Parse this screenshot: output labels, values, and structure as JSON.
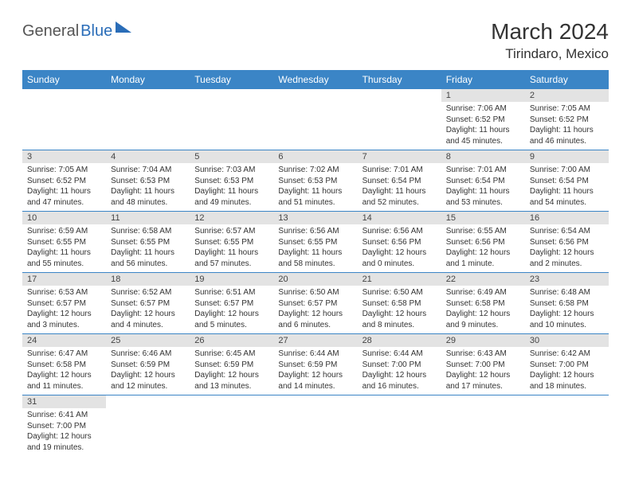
{
  "logo": {
    "part1": "General",
    "part2": "Blue"
  },
  "title": "March 2024",
  "location": "Tirindaro, Mexico",
  "colors": {
    "header_bg": "#3b85c6",
    "header_fg": "#ffffff",
    "daynum_bg": "#e3e3e3",
    "rule": "#3b85c6",
    "logo_gray": "#555555",
    "logo_blue": "#2a6db8"
  },
  "weekdays": [
    "Sunday",
    "Monday",
    "Tuesday",
    "Wednesday",
    "Thursday",
    "Friday",
    "Saturday"
  ],
  "grid": [
    [
      null,
      null,
      null,
      null,
      null,
      {
        "n": "1",
        "sunrise": "Sunrise: 7:06 AM",
        "sunset": "Sunset: 6:52 PM",
        "daylight": "Daylight: 11 hours and 45 minutes."
      },
      {
        "n": "2",
        "sunrise": "Sunrise: 7:05 AM",
        "sunset": "Sunset: 6:52 PM",
        "daylight": "Daylight: 11 hours and 46 minutes."
      }
    ],
    [
      {
        "n": "3",
        "sunrise": "Sunrise: 7:05 AM",
        "sunset": "Sunset: 6:52 PM",
        "daylight": "Daylight: 11 hours and 47 minutes."
      },
      {
        "n": "4",
        "sunrise": "Sunrise: 7:04 AM",
        "sunset": "Sunset: 6:53 PM",
        "daylight": "Daylight: 11 hours and 48 minutes."
      },
      {
        "n": "5",
        "sunrise": "Sunrise: 7:03 AM",
        "sunset": "Sunset: 6:53 PM",
        "daylight": "Daylight: 11 hours and 49 minutes."
      },
      {
        "n": "6",
        "sunrise": "Sunrise: 7:02 AM",
        "sunset": "Sunset: 6:53 PM",
        "daylight": "Daylight: 11 hours and 51 minutes."
      },
      {
        "n": "7",
        "sunrise": "Sunrise: 7:01 AM",
        "sunset": "Sunset: 6:54 PM",
        "daylight": "Daylight: 11 hours and 52 minutes."
      },
      {
        "n": "8",
        "sunrise": "Sunrise: 7:01 AM",
        "sunset": "Sunset: 6:54 PM",
        "daylight": "Daylight: 11 hours and 53 minutes."
      },
      {
        "n": "9",
        "sunrise": "Sunrise: 7:00 AM",
        "sunset": "Sunset: 6:54 PM",
        "daylight": "Daylight: 11 hours and 54 minutes."
      }
    ],
    [
      {
        "n": "10",
        "sunrise": "Sunrise: 6:59 AM",
        "sunset": "Sunset: 6:55 PM",
        "daylight": "Daylight: 11 hours and 55 minutes."
      },
      {
        "n": "11",
        "sunrise": "Sunrise: 6:58 AM",
        "sunset": "Sunset: 6:55 PM",
        "daylight": "Daylight: 11 hours and 56 minutes."
      },
      {
        "n": "12",
        "sunrise": "Sunrise: 6:57 AM",
        "sunset": "Sunset: 6:55 PM",
        "daylight": "Daylight: 11 hours and 57 minutes."
      },
      {
        "n": "13",
        "sunrise": "Sunrise: 6:56 AM",
        "sunset": "Sunset: 6:55 PM",
        "daylight": "Daylight: 11 hours and 58 minutes."
      },
      {
        "n": "14",
        "sunrise": "Sunrise: 6:56 AM",
        "sunset": "Sunset: 6:56 PM",
        "daylight": "Daylight: 12 hours and 0 minutes."
      },
      {
        "n": "15",
        "sunrise": "Sunrise: 6:55 AM",
        "sunset": "Sunset: 6:56 PM",
        "daylight": "Daylight: 12 hours and 1 minute."
      },
      {
        "n": "16",
        "sunrise": "Sunrise: 6:54 AM",
        "sunset": "Sunset: 6:56 PM",
        "daylight": "Daylight: 12 hours and 2 minutes."
      }
    ],
    [
      {
        "n": "17",
        "sunrise": "Sunrise: 6:53 AM",
        "sunset": "Sunset: 6:57 PM",
        "daylight": "Daylight: 12 hours and 3 minutes."
      },
      {
        "n": "18",
        "sunrise": "Sunrise: 6:52 AM",
        "sunset": "Sunset: 6:57 PM",
        "daylight": "Daylight: 12 hours and 4 minutes."
      },
      {
        "n": "19",
        "sunrise": "Sunrise: 6:51 AM",
        "sunset": "Sunset: 6:57 PM",
        "daylight": "Daylight: 12 hours and 5 minutes."
      },
      {
        "n": "20",
        "sunrise": "Sunrise: 6:50 AM",
        "sunset": "Sunset: 6:57 PM",
        "daylight": "Daylight: 12 hours and 6 minutes."
      },
      {
        "n": "21",
        "sunrise": "Sunrise: 6:50 AM",
        "sunset": "Sunset: 6:58 PM",
        "daylight": "Daylight: 12 hours and 8 minutes."
      },
      {
        "n": "22",
        "sunrise": "Sunrise: 6:49 AM",
        "sunset": "Sunset: 6:58 PM",
        "daylight": "Daylight: 12 hours and 9 minutes."
      },
      {
        "n": "23",
        "sunrise": "Sunrise: 6:48 AM",
        "sunset": "Sunset: 6:58 PM",
        "daylight": "Daylight: 12 hours and 10 minutes."
      }
    ],
    [
      {
        "n": "24",
        "sunrise": "Sunrise: 6:47 AM",
        "sunset": "Sunset: 6:58 PM",
        "daylight": "Daylight: 12 hours and 11 minutes."
      },
      {
        "n": "25",
        "sunrise": "Sunrise: 6:46 AM",
        "sunset": "Sunset: 6:59 PM",
        "daylight": "Daylight: 12 hours and 12 minutes."
      },
      {
        "n": "26",
        "sunrise": "Sunrise: 6:45 AM",
        "sunset": "Sunset: 6:59 PM",
        "daylight": "Daylight: 12 hours and 13 minutes."
      },
      {
        "n": "27",
        "sunrise": "Sunrise: 6:44 AM",
        "sunset": "Sunset: 6:59 PM",
        "daylight": "Daylight: 12 hours and 14 minutes."
      },
      {
        "n": "28",
        "sunrise": "Sunrise: 6:44 AM",
        "sunset": "Sunset: 7:00 PM",
        "daylight": "Daylight: 12 hours and 16 minutes."
      },
      {
        "n": "29",
        "sunrise": "Sunrise: 6:43 AM",
        "sunset": "Sunset: 7:00 PM",
        "daylight": "Daylight: 12 hours and 17 minutes."
      },
      {
        "n": "30",
        "sunrise": "Sunrise: 6:42 AM",
        "sunset": "Sunset: 7:00 PM",
        "daylight": "Daylight: 12 hours and 18 minutes."
      }
    ],
    [
      {
        "n": "31",
        "sunrise": "Sunrise: 6:41 AM",
        "sunset": "Sunset: 7:00 PM",
        "daylight": "Daylight: 12 hours and 19 minutes."
      },
      null,
      null,
      null,
      null,
      null,
      null
    ]
  ]
}
